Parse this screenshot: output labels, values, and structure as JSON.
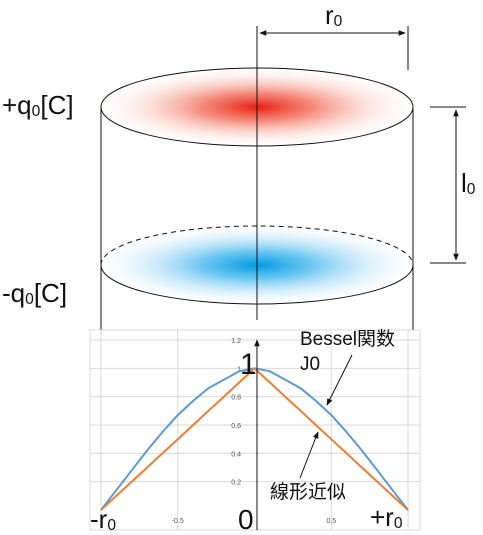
{
  "labels": {
    "r0": {
      "main": "r",
      "sub": "0"
    },
    "l0": {
      "main": "l",
      "sub": "0"
    },
    "plus_q": {
      "prefix": "+q",
      "sub": "0",
      "suffix": "[C]"
    },
    "minus_q": {
      "prefix": "-q",
      "sub": "0",
      "suffix": "[C]"
    },
    "bessel": "Bessel関数",
    "j0": "J0",
    "linear": "線形近似",
    "one": "1",
    "zero": "0",
    "neg_r0": {
      "main": "-r",
      "sub": "0"
    },
    "pos_r0": {
      "main": "+r",
      "sub": "0"
    }
  },
  "colors": {
    "top_disc": "#e8321e",
    "bottom_disc": "#0a9ee0",
    "bessel_line": "#5b9bd5",
    "linear_line": "#ed7d31",
    "grid": "#d9d9d9"
  },
  "chart_data": {
    "type": "line",
    "x": [
      -1,
      -0.9,
      -0.8,
      -0.7,
      -0.6,
      -0.5,
      -0.4,
      -0.3,
      -0.2,
      -0.1,
      0,
      0.1,
      0.2,
      0.3,
      0.4,
      0.5,
      0.6,
      0.7,
      0.8,
      0.9,
      1
    ],
    "series": [
      {
        "name": "Bessel関数 J0",
        "color": "#5b9bd5",
        "values": [
          0,
          0.14,
          0.28,
          0.42,
          0.55,
          0.67,
          0.77,
          0.86,
          0.92,
          0.98,
          1,
          0.98,
          0.92,
          0.86,
          0.77,
          0.67,
          0.55,
          0.42,
          0.28,
          0.14,
          0
        ]
      },
      {
        "name": "線形近似",
        "color": "#ed7d31",
        "values": [
          0,
          0.1,
          0.2,
          0.3,
          0.4,
          0.5,
          0.6,
          0.7,
          0.8,
          0.9,
          1,
          0.9,
          0.8,
          0.7,
          0.6,
          0.5,
          0.4,
          0.3,
          0.2,
          0.1,
          0
        ]
      }
    ],
    "xlim": [
      -1,
      1
    ],
    "ylim": [
      0,
      1.2
    ],
    "yticks": [
      "0.2",
      "0.4",
      "0.6",
      "0.8",
      "1",
      "1.2"
    ],
    "xticks": [
      "-0.5",
      "0.5"
    ],
    "grid": true
  }
}
